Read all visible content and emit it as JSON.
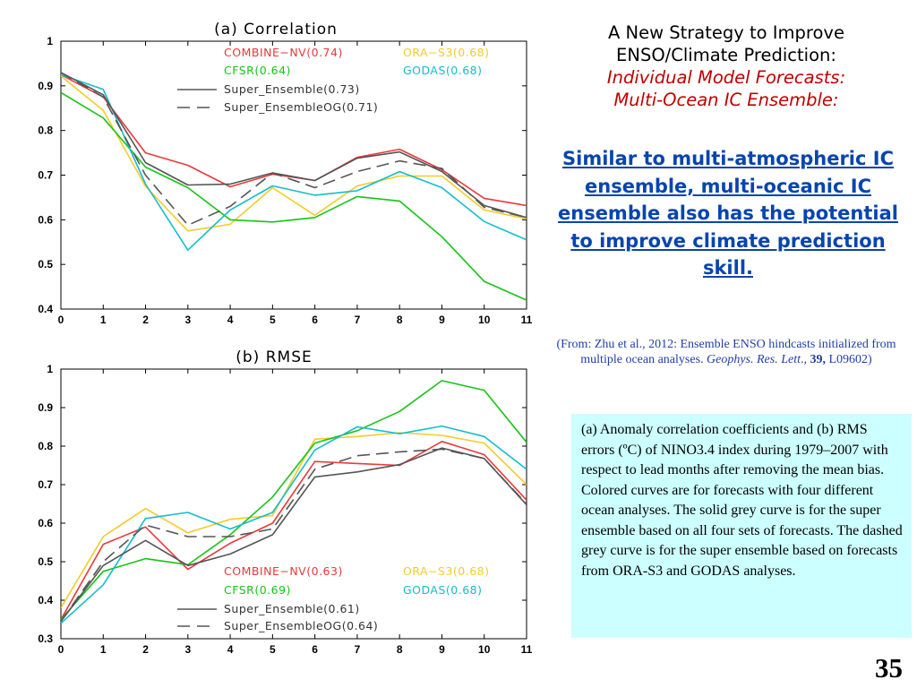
{
  "slide": {
    "heading_line1": "A New Strategy to Improve",
    "heading_line2": "ENSO/Climate Prediction:",
    "heading_line3": "Individual Model Forecasts:",
    "heading_line4": "Multi-Ocean IC Ensemble:",
    "key_message": "Similar to multi-atmospheric IC ensemble, multi-oceanic IC ensemble  also has the potential to improve climate prediction skill.",
    "citation_prefix": "(From: Zhu  et al., 2012: Ensemble ENSO hindcasts initialized from multiple ocean analyses. ",
    "citation_journal": "Geophys. Res. Lett",
    "citation_sep": "., ",
    "citation_volume": "39,",
    "citation_suffix": " L09602)",
    "caption": "(a) Anomaly correlation coefficients and (b) RMS errors (ºC) of NINO3.4 index during 1979–2007 with respect to lead months after removing the mean bias. Colored curves are for forecasts with four different ocean analyses. The solid grey curve is for the super ensemble based on all four sets of forecasts. The dashed grey curve is for the super ensemble based on forecasts from ORA-S3 and GODAS analyses.",
    "page_number": "35"
  },
  "chart_data": [
    {
      "type": "line",
      "title": "(a)  Correlation",
      "xlabel": "",
      "ylabel": "",
      "x": [
        0,
        1,
        2,
        3,
        4,
        5,
        6,
        7,
        8,
        9,
        10,
        11
      ],
      "xlim": [
        0,
        11
      ],
      "ylim": [
        0.4,
        1.0
      ],
      "yticks": [
        0.4,
        0.5,
        0.6,
        0.7,
        0.8,
        0.9,
        1.0
      ],
      "ytick_labels": [
        "0.4",
        "0.5",
        "0.6",
        "0.7",
        "0.8",
        "0.9",
        "1"
      ],
      "xtick_labels": [
        "0",
        "1",
        "2",
        "3",
        "4",
        "5",
        "6",
        "7",
        "8",
        "9",
        "10",
        "11"
      ],
      "grid": false,
      "legend_position": "top-right",
      "series": [
        {
          "name": "COMBINE−NV(0.74)",
          "color": "#e8393b",
          "dash": "solid",
          "values": [
            0.925,
            0.875,
            0.75,
            0.722,
            0.674,
            0.702,
            0.688,
            0.74,
            0.758,
            0.712,
            0.648,
            0.632
          ]
        },
        {
          "name": "ORA−S3(0.68)",
          "color": "#f2cc2a",
          "dash": "solid",
          "values": [
            0.922,
            0.845,
            0.675,
            0.575,
            0.59,
            0.672,
            0.61,
            0.676,
            0.698,
            0.698,
            0.622,
            0.602
          ]
        },
        {
          "name": "CFSR(0.64)",
          "color": "#17c417",
          "dash": "solid",
          "values": [
            0.885,
            0.828,
            0.718,
            0.672,
            0.6,
            0.595,
            0.605,
            0.652,
            0.642,
            0.562,
            0.462,
            0.42
          ]
        },
        {
          "name": "GODAS(0.68)",
          "color": "#16bccc",
          "dash": "solid",
          "values": [
            0.925,
            0.892,
            0.68,
            0.532,
            0.622,
            0.676,
            0.655,
            0.665,
            0.708,
            0.672,
            0.596,
            0.555
          ]
        },
        {
          "name": "Super_Ensemble(0.73)",
          "color": "#555555",
          "dash": "solid",
          "values": [
            0.93,
            0.88,
            0.728,
            0.678,
            0.68,
            0.705,
            0.688,
            0.738,
            0.752,
            0.708,
            0.632,
            0.605
          ]
        },
        {
          "name": "Super_EnsembleOG(0.71)",
          "color": "#555555",
          "dash": "dashed",
          "values": [
            0.93,
            0.875,
            0.7,
            0.588,
            0.63,
            0.705,
            0.672,
            0.708,
            0.732,
            0.715,
            0.628,
            0.605
          ]
        }
      ]
    },
    {
      "type": "line",
      "title": "(b)  RMSE",
      "xlabel": "",
      "ylabel": "",
      "x": [
        0,
        1,
        2,
        3,
        4,
        5,
        6,
        7,
        8,
        9,
        10,
        11
      ],
      "xlim": [
        0,
        11
      ],
      "ylim": [
        0.3,
        1.0
      ],
      "yticks": [
        0.3,
        0.4,
        0.5,
        0.6,
        0.7,
        0.8,
        0.9,
        1.0
      ],
      "ytick_labels": [
        "0.3",
        "0.4",
        "0.5",
        "0.6",
        "0.7",
        "0.8",
        "0.9",
        "1"
      ],
      "xtick_labels": [
        "0",
        "1",
        "2",
        "3",
        "4",
        "5",
        "6",
        "7",
        "8",
        "9",
        "10",
        "11"
      ],
      "grid": false,
      "legend_position": "bottom-right",
      "series": [
        {
          "name": "COMBINE−NV(0.63)",
          "color": "#e8393b",
          "dash": "solid",
          "values": [
            0.35,
            0.545,
            0.59,
            0.48,
            0.548,
            0.6,
            0.76,
            0.755,
            0.75,
            0.812,
            0.778,
            0.66
          ]
        },
        {
          "name": "ORA−S3(0.68)",
          "color": "#f2cc2a",
          "dash": "solid",
          "values": [
            0.38,
            0.565,
            0.638,
            0.575,
            0.61,
            0.62,
            0.818,
            0.825,
            0.835,
            0.828,
            0.808,
            0.7
          ]
        },
        {
          "name": "CFSR(0.69)",
          "color": "#17c417",
          "dash": "solid",
          "values": [
            0.35,
            0.475,
            0.508,
            0.492,
            0.57,
            0.668,
            0.808,
            0.84,
            0.89,
            0.97,
            0.945,
            0.81
          ]
        },
        {
          "name": "GODAS(0.68)",
          "color": "#16bccc",
          "dash": "solid",
          "values": [
            0.34,
            0.44,
            0.612,
            0.628,
            0.585,
            0.628,
            0.79,
            0.85,
            0.832,
            0.852,
            0.825,
            0.74
          ]
        },
        {
          "name": "Super_Ensemble(0.61)",
          "color": "#555555",
          "dash": "solid",
          "values": [
            0.345,
            0.49,
            0.555,
            0.49,
            0.52,
            0.57,
            0.72,
            0.733,
            0.752,
            0.795,
            0.768,
            0.648
          ]
        },
        {
          "name": "Super_EnsembleOG(0.64)",
          "color": "#555555",
          "dash": "dashed",
          "values": [
            0.345,
            0.5,
            0.595,
            0.565,
            0.565,
            0.585,
            0.74,
            0.775,
            0.785,
            0.792,
            0.768,
            0.65
          ]
        }
      ]
    }
  ]
}
